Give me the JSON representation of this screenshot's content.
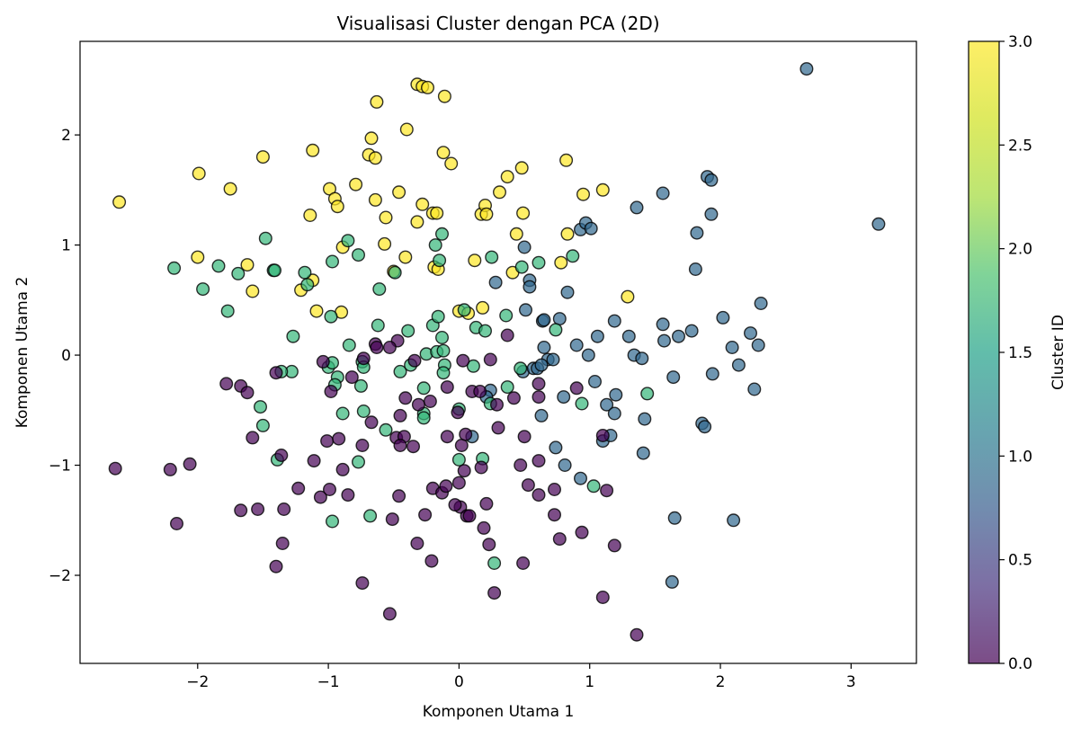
{
  "chart_data": {
    "type": "scatter",
    "title": "Visualisasi Cluster dengan PCA (2D)",
    "xlabel": "Komponen Utama 1",
    "ylabel": "Komponen Utama 2",
    "xlim": [
      -2.9,
      3.5
    ],
    "ylim": [
      -2.8,
      2.85
    ],
    "x_ticks": [
      -2,
      -1,
      0,
      1,
      2,
      3
    ],
    "x_tick_labels": [
      "−2",
      "−1",
      "0",
      "1",
      "2",
      "3"
    ],
    "y_ticks": [
      -2,
      -1,
      0,
      1,
      2
    ],
    "y_tick_labels": [
      "−2",
      "−1",
      "0",
      "1",
      "2"
    ],
    "grid": false,
    "colorbar": {
      "label": "Cluster ID",
      "range": [
        0.0,
        3.0
      ],
      "ticks": [
        0.0,
        0.5,
        1.0,
        1.5,
        2.0,
        2.5,
        3.0
      ],
      "tick_labels": [
        "0.0",
        "0.5",
        "1.0",
        "1.5",
        "2.0",
        "2.5",
        "3.0"
      ],
      "colormap": "viridis"
    },
    "cluster_colors": {
      "0": "#440154",
      "1": "#31688e",
      "2": "#35b779",
      "3": "#fde725"
    },
    "marker_alpha": 0.7,
    "series": [
      {
        "cluster": 3,
        "points": [
          [
            -2.6,
            1.39
          ],
          [
            -1.99,
            1.65
          ],
          [
            -1.75,
            1.51
          ],
          [
            -1.5,
            1.8
          ],
          [
            -1.12,
            1.86
          ],
          [
            -0.99,
            1.51
          ],
          [
            -0.95,
            1.42
          ],
          [
            -0.93,
            1.35
          ],
          [
            -1.14,
            1.27
          ],
          [
            -0.79,
            1.55
          ],
          [
            -0.69,
            1.82
          ],
          [
            -0.67,
            1.97
          ],
          [
            -0.64,
            1.79
          ],
          [
            -0.64,
            1.41
          ],
          [
            -0.56,
            1.25
          ],
          [
            -0.46,
            1.48
          ],
          [
            -0.4,
            2.05
          ],
          [
            -0.32,
            1.21
          ],
          [
            -0.28,
            1.37
          ],
          [
            -0.2,
            1.29
          ],
          [
            -0.17,
            1.29
          ],
          [
            -0.32,
            2.46
          ],
          [
            -0.28,
            2.44
          ],
          [
            -0.24,
            2.43
          ],
          [
            -0.11,
            2.35
          ],
          [
            -0.63,
            2.3
          ],
          [
            -0.12,
            1.84
          ],
          [
            -0.06,
            1.74
          ],
          [
            -2.0,
            0.89
          ],
          [
            -1.62,
            0.82
          ],
          [
            -1.58,
            0.58
          ],
          [
            -1.12,
            0.68
          ],
          [
            -1.21,
            0.59
          ],
          [
            -1.09,
            0.4
          ],
          [
            -0.9,
            0.39
          ],
          [
            -0.89,
            0.98
          ],
          [
            -0.57,
            1.01
          ],
          [
            -0.5,
            0.76
          ],
          [
            -0.41,
            0.89
          ],
          [
            -0.19,
            0.8
          ],
          [
            -0.16,
            0.78
          ],
          [
            0.12,
            0.86
          ],
          [
            0.17,
            1.28
          ],
          [
            0.2,
            1.36
          ],
          [
            0.21,
            1.28
          ],
          [
            0.31,
            1.48
          ],
          [
            0.37,
            1.62
          ],
          [
            0.44,
            1.1
          ],
          [
            0.48,
            1.7
          ],
          [
            0.49,
            1.29
          ],
          [
            0.41,
            0.75
          ],
          [
            0.78,
            0.84
          ],
          [
            0.82,
            1.77
          ],
          [
            0.83,
            1.1
          ],
          [
            0.95,
            1.46
          ],
          [
            1.1,
            1.5
          ],
          [
            1.29,
            0.53
          ],
          [
            0.0,
            0.4
          ],
          [
            0.07,
            0.38
          ],
          [
            0.18,
            0.43
          ]
        ]
      },
      {
        "cluster": 1,
        "points": [
          [
            2.66,
            2.6
          ],
          [
            3.21,
            1.19
          ],
          [
            1.9,
            1.62
          ],
          [
            1.93,
            1.59
          ],
          [
            1.56,
            1.47
          ],
          [
            1.36,
            1.34
          ],
          [
            1.93,
            1.28
          ],
          [
            1.82,
            1.11
          ],
          [
            1.81,
            0.78
          ],
          [
            2.31,
            0.47
          ],
          [
            0.93,
            1.14
          ],
          [
            0.97,
            1.2
          ],
          [
            1.01,
            1.15
          ],
          [
            0.5,
            0.98
          ],
          [
            0.54,
            0.68
          ],
          [
            0.54,
            0.62
          ],
          [
            0.28,
            0.66
          ],
          [
            0.51,
            0.41
          ],
          [
            0.83,
            0.57
          ],
          [
            0.64,
            0.31
          ],
          [
            0.65,
            0.32
          ],
          [
            0.77,
            0.33
          ],
          [
            1.19,
            0.31
          ],
          [
            1.56,
            0.28
          ],
          [
            2.02,
            0.34
          ],
          [
            2.23,
            0.2
          ],
          [
            1.06,
            0.17
          ],
          [
            1.3,
            0.17
          ],
          [
            1.68,
            0.17
          ],
          [
            1.78,
            0.22
          ],
          [
            1.57,
            0.13
          ],
          [
            2.09,
            0.07
          ],
          [
            2.29,
            0.09
          ],
          [
            0.9,
            0.09
          ],
          [
            0.65,
            0.07
          ],
          [
            0.68,
            -0.04
          ],
          [
            0.72,
            -0.04
          ],
          [
            0.99,
            0.0
          ],
          [
            1.34,
            0.0
          ],
          [
            1.4,
            -0.03
          ],
          [
            0.49,
            -0.15
          ],
          [
            0.57,
            -0.12
          ],
          [
            0.6,
            -0.12
          ],
          [
            0.63,
            -0.09
          ],
          [
            2.14,
            -0.09
          ],
          [
            1.94,
            -0.17
          ],
          [
            1.64,
            -0.2
          ],
          [
            1.04,
            -0.24
          ],
          [
            2.26,
            -0.31
          ],
          [
            1.2,
            -0.36
          ],
          [
            0.8,
            -0.38
          ],
          [
            1.13,
            -0.45
          ],
          [
            0.24,
            -0.32
          ],
          [
            0.21,
            -0.38
          ],
          [
            1.19,
            -0.53
          ],
          [
            0.63,
            -0.55
          ],
          [
            1.42,
            -0.58
          ],
          [
            1.86,
            -0.62
          ],
          [
            1.88,
            -0.65
          ],
          [
            1.1,
            -0.78
          ],
          [
            1.16,
            -0.73
          ],
          [
            0.74,
            -0.84
          ],
          [
            1.41,
            -0.89
          ],
          [
            0.81,
            -1.0
          ],
          [
            0.93,
            -1.12
          ],
          [
            1.65,
            -1.48
          ],
          [
            2.1,
            -1.5
          ],
          [
            1.63,
            -2.06
          ],
          [
            0.1,
            -0.74
          ]
        ]
      },
      {
        "cluster": 2,
        "points": [
          [
            -2.18,
            0.79
          ],
          [
            -1.96,
            0.6
          ],
          [
            -1.84,
            0.81
          ],
          [
            -1.69,
            0.74
          ],
          [
            -1.77,
            0.4
          ],
          [
            -1.48,
            1.06
          ],
          [
            -1.42,
            0.77
          ],
          [
            -1.41,
            0.77
          ],
          [
            -1.18,
            0.75
          ],
          [
            -1.16,
            0.64
          ],
          [
            -0.97,
            0.85
          ],
          [
            -0.85,
            1.04
          ],
          [
            -0.77,
            0.91
          ],
          [
            -0.61,
            0.6
          ],
          [
            -0.49,
            0.75
          ],
          [
            -0.98,
            0.35
          ],
          [
            -1.27,
            0.17
          ],
          [
            -0.84,
            0.09
          ],
          [
            -0.62,
            0.27
          ],
          [
            -0.39,
            0.22
          ],
          [
            -0.2,
            0.27
          ],
          [
            -0.13,
            1.1
          ],
          [
            -0.18,
            1.0
          ],
          [
            -0.15,
            0.86
          ],
          [
            0.25,
            0.89
          ],
          [
            0.48,
            0.8
          ],
          [
            0.61,
            0.84
          ],
          [
            0.87,
            0.9
          ],
          [
            0.36,
            0.36
          ],
          [
            0.74,
            0.23
          ],
          [
            0.13,
            0.25
          ],
          [
            0.2,
            0.22
          ],
          [
            -0.16,
            0.35
          ],
          [
            0.04,
            0.41
          ],
          [
            -1.0,
            -0.11
          ],
          [
            -0.97,
            -0.07
          ],
          [
            -0.74,
            -0.06
          ],
          [
            -0.73,
            -0.11
          ],
          [
            -0.75,
            -0.28
          ],
          [
            -0.93,
            -0.2
          ],
          [
            -0.95,
            -0.27
          ],
          [
            -1.28,
            -0.15
          ],
          [
            -1.36,
            -0.15
          ],
          [
            -1.52,
            -0.47
          ],
          [
            -1.5,
            -0.64
          ],
          [
            -0.89,
            -0.53
          ],
          [
            -0.73,
            -0.51
          ],
          [
            -0.56,
            -0.68
          ],
          [
            -0.77,
            -0.97
          ],
          [
            -1.39,
            -0.95
          ],
          [
            -0.45,
            -0.15
          ],
          [
            -0.27,
            -0.3
          ],
          [
            -0.37,
            -0.09
          ],
          [
            -0.25,
            0.01
          ],
          [
            -0.17,
            0.03
          ],
          [
            -0.12,
            0.04
          ],
          [
            -0.13,
            0.16
          ],
          [
            -0.11,
            -0.09
          ],
          [
            -0.12,
            -0.16
          ],
          [
            0.11,
            -0.1
          ],
          [
            0.24,
            -0.44
          ],
          [
            0.37,
            -0.29
          ],
          [
            0.47,
            -0.12
          ],
          [
            0.94,
            -0.44
          ],
          [
            1.44,
            -0.35
          ],
          [
            0.0,
            -0.49
          ],
          [
            -0.27,
            -0.53
          ],
          [
            -0.27,
            -0.57
          ],
          [
            0.0,
            -0.95
          ],
          [
            0.18,
            -0.94
          ],
          [
            -0.97,
            -1.51
          ],
          [
            -0.68,
            -1.46
          ],
          [
            0.27,
            -1.89
          ],
          [
            1.03,
            -1.19
          ]
        ]
      },
      {
        "cluster": 0,
        "points": [
          [
            -2.63,
            -1.03
          ],
          [
            -2.21,
            -1.04
          ],
          [
            -2.06,
            -0.99
          ],
          [
            -2.16,
            -1.53
          ],
          [
            -1.78,
            -0.26
          ],
          [
            -1.67,
            -0.28
          ],
          [
            -1.62,
            -0.34
          ],
          [
            -1.4,
            -0.16
          ],
          [
            -1.58,
            -0.75
          ],
          [
            -1.36,
            -0.91
          ],
          [
            -1.11,
            -0.96
          ],
          [
            -1.23,
            -1.21
          ],
          [
            -1.01,
            -0.78
          ],
          [
            -0.92,
            -0.76
          ],
          [
            -0.89,
            -1.04
          ],
          [
            -1.06,
            -1.29
          ],
          [
            -0.99,
            -1.22
          ],
          [
            -0.85,
            -1.27
          ],
          [
            -1.67,
            -1.41
          ],
          [
            -1.54,
            -1.4
          ],
          [
            -1.34,
            -1.4
          ],
          [
            -1.35,
            -1.71
          ],
          [
            -1.4,
            -1.92
          ],
          [
            -0.74,
            -2.07
          ],
          [
            -0.53,
            -2.35
          ],
          [
            -0.74,
            -0.82
          ],
          [
            -0.67,
            -0.61
          ],
          [
            -0.48,
            -0.75
          ],
          [
            -0.42,
            -0.74
          ],
          [
            -0.45,
            -0.55
          ],
          [
            -0.45,
            -0.82
          ],
          [
            -0.35,
            -0.83
          ],
          [
            -0.31,
            -0.45
          ],
          [
            -0.22,
            -0.42
          ],
          [
            -0.34,
            -0.05
          ],
          [
            -0.47,
            0.13
          ],
          [
            -0.53,
            0.07
          ],
          [
            -0.64,
            0.1
          ],
          [
            -0.63,
            0.07
          ],
          [
            -0.98,
            -0.33
          ],
          [
            -1.04,
            -0.06
          ],
          [
            -0.73,
            -0.03
          ],
          [
            -0.82,
            -0.2
          ],
          [
            -0.41,
            -0.39
          ],
          [
            -0.09,
            -0.29
          ],
          [
            0.1,
            -0.33
          ],
          [
            0.16,
            -0.33
          ],
          [
            0.24,
            -0.04
          ],
          [
            0.37,
            0.18
          ],
          [
            0.42,
            -0.39
          ],
          [
            0.29,
            -0.45
          ],
          [
            0.03,
            -0.05
          ],
          [
            -0.01,
            -0.52
          ],
          [
            -0.09,
            -0.74
          ],
          [
            0.02,
            -0.82
          ],
          [
            0.05,
            -0.72
          ],
          [
            0.04,
            -1.05
          ],
          [
            0.0,
            -1.16
          ],
          [
            -0.2,
            -1.21
          ],
          [
            -0.13,
            -1.25
          ],
          [
            -0.1,
            -1.19
          ],
          [
            -0.26,
            -1.45
          ],
          [
            -0.51,
            -1.49
          ],
          [
            -0.46,
            -1.28
          ],
          [
            -0.32,
            -1.71
          ],
          [
            -0.21,
            -1.87
          ],
          [
            0.01,
            -1.38
          ],
          [
            0.06,
            -1.46
          ],
          [
            0.08,
            -1.46
          ],
          [
            0.17,
            -1.02
          ],
          [
            0.21,
            -1.35
          ],
          [
            0.19,
            -1.57
          ],
          [
            0.23,
            -1.72
          ],
          [
            0.27,
            -2.16
          ],
          [
            0.47,
            -1.0
          ],
          [
            0.5,
            -0.74
          ],
          [
            0.53,
            -1.18
          ],
          [
            0.61,
            -0.96
          ],
          [
            0.61,
            -1.27
          ],
          [
            0.73,
            -1.45
          ],
          [
            0.77,
            -1.67
          ],
          [
            0.73,
            -1.22
          ],
          [
            0.94,
            -1.61
          ],
          [
            0.61,
            -0.38
          ],
          [
            0.61,
            -0.26
          ],
          [
            0.49,
            -1.89
          ],
          [
            0.9,
            -0.3
          ],
          [
            1.1,
            -0.73
          ],
          [
            1.13,
            -1.23
          ],
          [
            1.19,
            -1.73
          ],
          [
            1.1,
            -2.2
          ],
          [
            1.36,
            -2.54
          ],
          [
            0.3,
            -0.66
          ],
          [
            -0.03,
            -1.36
          ]
        ]
      }
    ]
  }
}
